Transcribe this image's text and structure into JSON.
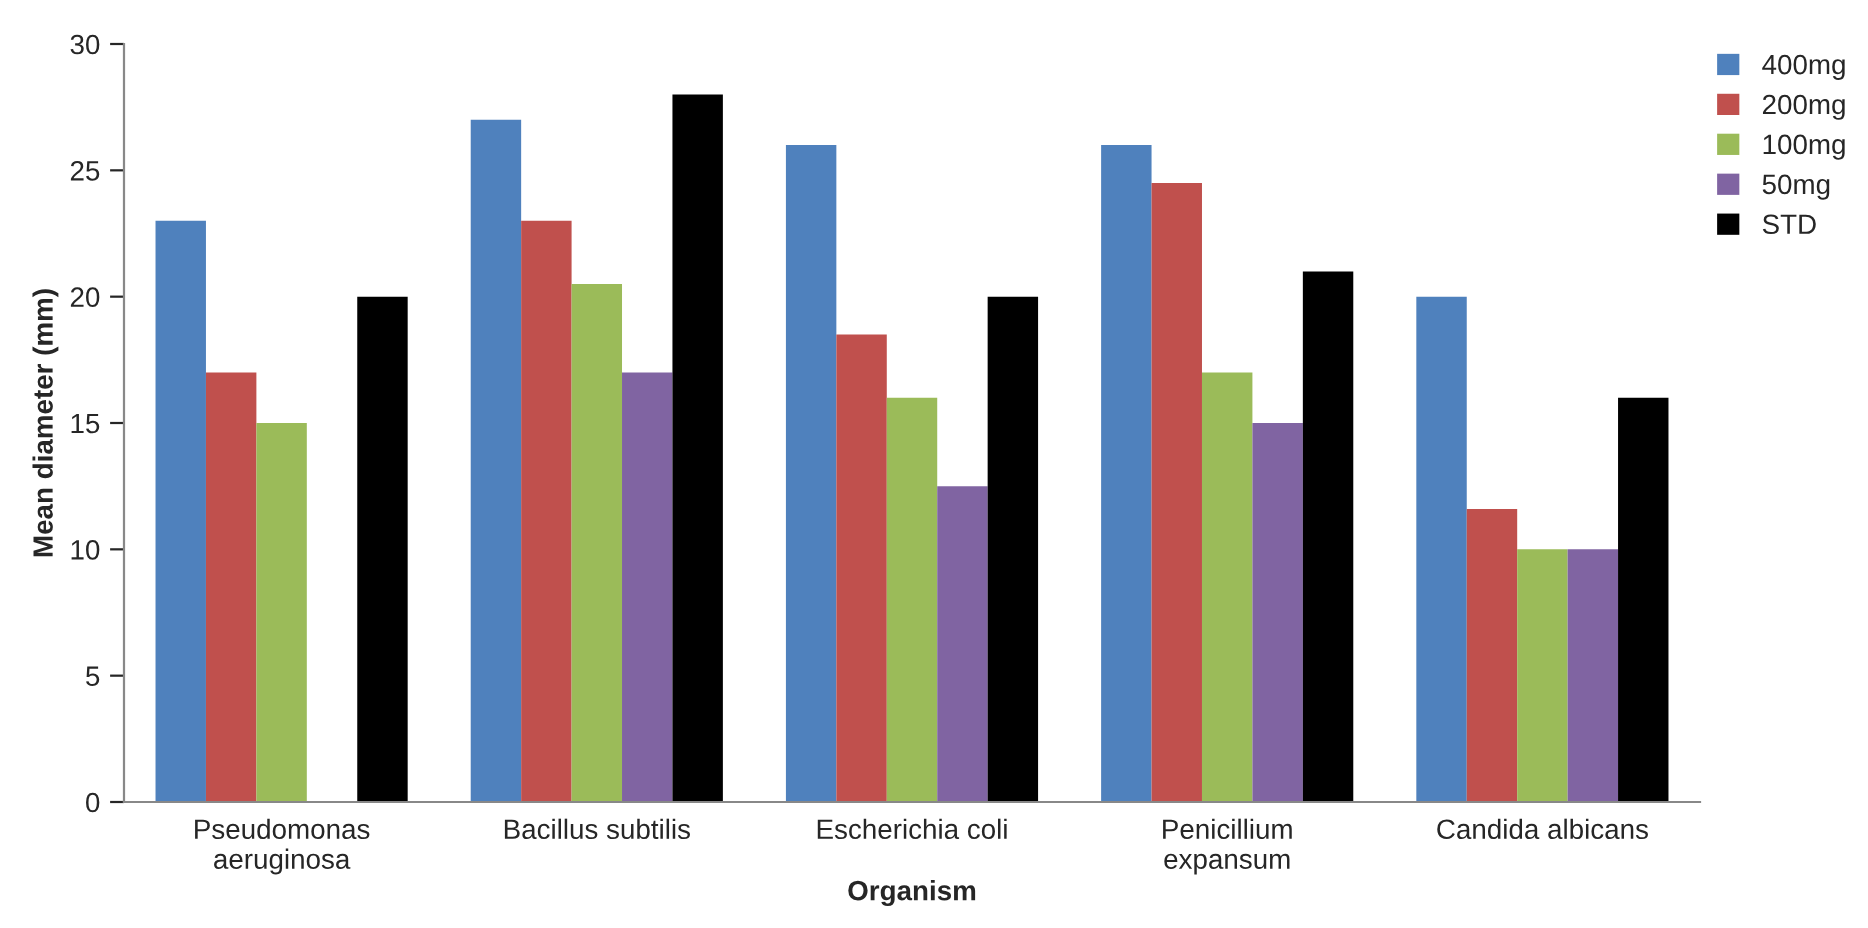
{
  "chart_data": {
    "type": "bar",
    "xlabel": "Organism",
    "ylabel": "Mean diameter (mm)",
    "categories": [
      "Pseudomonas\naeruginosa",
      "Bacillus subtilis",
      "Escherichia coli",
      "Penicillium\nexpansum",
      "Candida albicans"
    ],
    "series": [
      {
        "name": "400mg",
        "color": "#4f81bd",
        "values": [
          23,
          27,
          26,
          26,
          20
        ]
      },
      {
        "name": "200mg",
        "color": "#c0504d",
        "values": [
          17,
          23,
          18.5,
          24.5,
          11.6
        ]
      },
      {
        "name": "100mg",
        "color": "#9bbb59",
        "values": [
          15,
          20.5,
          16,
          17,
          10
        ]
      },
      {
        "name": "50mg",
        "color": "#8064a2",
        "values": [
          null,
          17,
          12.5,
          15,
          10
        ]
      },
      {
        "name": "STD",
        "color": "#000000",
        "values": [
          20,
          28,
          20,
          21,
          16
        ]
      }
    ],
    "ylim": [
      0,
      30
    ],
    "yticks": [
      0,
      5,
      10,
      15,
      20,
      25,
      30
    ],
    "grid": false,
    "legend": "top right"
  }
}
